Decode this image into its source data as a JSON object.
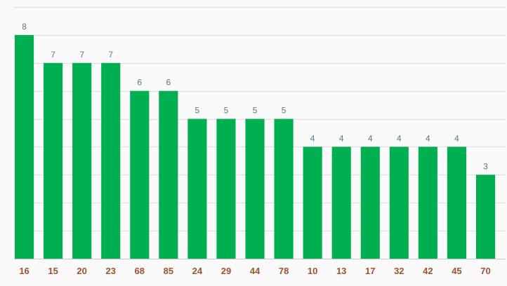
{
  "chart_data": {
    "type": "bar",
    "categories": [
      "16",
      "15",
      "20",
      "23",
      "68",
      "85",
      "24",
      "29",
      "44",
      "78",
      "10",
      "13",
      "17",
      "32",
      "42",
      "45",
      "70"
    ],
    "values": [
      8,
      7,
      7,
      7,
      6,
      6,
      5,
      5,
      5,
      5,
      4,
      4,
      4,
      4,
      4,
      4,
      3
    ],
    "title": "",
    "xlabel": "",
    "ylabel": "",
    "ylim": [
      0,
      9
    ],
    "grid": true,
    "legend": "none",
    "colors": {
      "bar": "#00b050",
      "value_label": "#5a7a8c",
      "tick_label": "#a0522d",
      "grid": "#dcdcdc",
      "background": "#fafafa"
    }
  }
}
